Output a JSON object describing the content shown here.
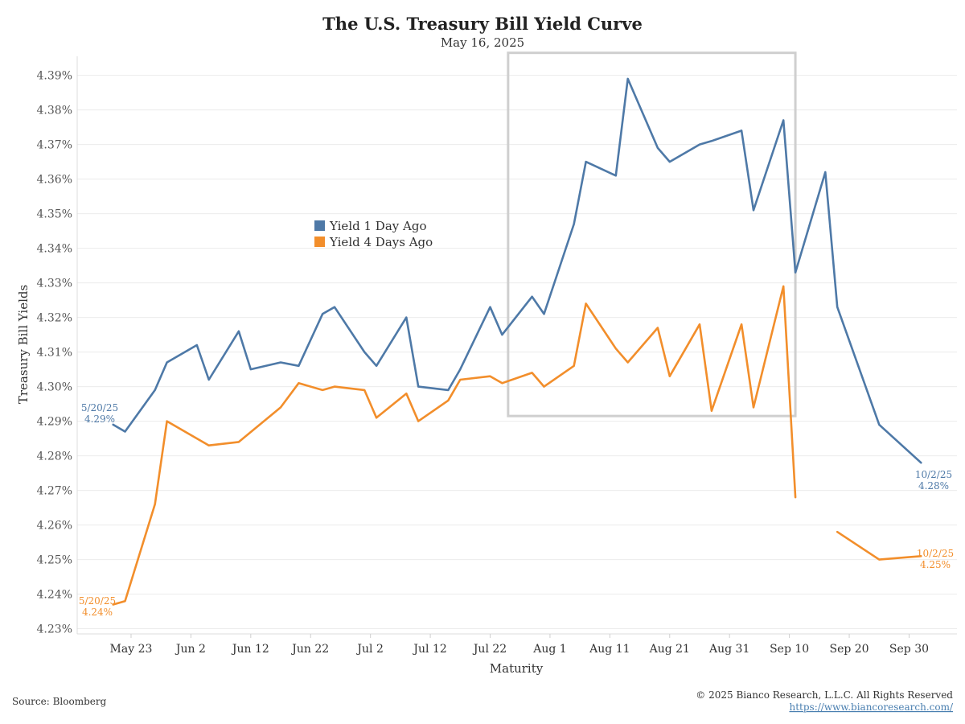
{
  "chart_data": {
    "type": "line",
    "title": "The U.S. Treasury Bill Yield Curve",
    "subtitle": "May 16, 2025",
    "xlabel": "Maturity",
    "ylabel": "Treasury Bill Yields",
    "x_tick_labels": [
      "May 23",
      "Jun 2",
      "Jun 12",
      "Jun 22",
      "Jul 2",
      "Jul 12",
      "Jul 22",
      "Aug 1",
      "Aug 11",
      "Aug 21",
      "Aug 31",
      "Sep 10",
      "Sep 20",
      "Sep 30"
    ],
    "x_tick_dates": [
      "2025-05-23",
      "2025-06-02",
      "2025-06-12",
      "2025-06-22",
      "2025-07-02",
      "2025-07-12",
      "2025-07-22",
      "2025-08-01",
      "2025-08-11",
      "2025-08-21",
      "2025-08-31",
      "2025-09-10",
      "2025-09-20",
      "2025-09-30"
    ],
    "y_tick_labels": [
      "4.23%",
      "4.24%",
      "4.25%",
      "4.26%",
      "4.27%",
      "4.28%",
      "4.29%",
      "4.30%",
      "4.31%",
      "4.32%",
      "4.33%",
      "4.34%",
      "4.35%",
      "4.36%",
      "4.37%",
      "4.38%",
      "4.39%"
    ],
    "y_ticks": [
      4.23,
      4.24,
      4.25,
      4.26,
      4.27,
      4.28,
      4.29,
      4.3,
      4.31,
      4.32,
      4.33,
      4.34,
      4.35,
      4.36,
      4.37,
      4.38,
      4.39
    ],
    "xlim": [
      "2025-05-14",
      "2025-10-08"
    ],
    "ylim": [
      4.2285,
      4.3955
    ],
    "legend_position": "upper-center",
    "grid": true,
    "highlight_box": {
      "x_range": [
        "2025-07-25",
        "2025-09-11"
      ],
      "y_range": [
        4.2915,
        4.3965
      ]
    },
    "series": [
      {
        "name": "Yield 1 Day Ago",
        "color": "#4e79a7",
        "start_label": {
          "date": "5/20/25",
          "value": "4.29%"
        },
        "end_label": {
          "date": "10/2/25",
          "value": "4.28%"
        },
        "segments": [
          [
            [
              "2025-05-20",
              4.289
            ],
            [
              "2025-05-22",
              4.287
            ],
            [
              "2025-05-27",
              4.299
            ],
            [
              "2025-05-29",
              4.307
            ],
            [
              "2025-06-03",
              4.312
            ],
            [
              "2025-06-05",
              4.302
            ],
            [
              "2025-06-10",
              4.316
            ],
            [
              "2025-06-12",
              4.305
            ],
            [
              "2025-06-17",
              4.307
            ],
            [
              "2025-06-20",
              4.306
            ],
            [
              "2025-06-24",
              4.321
            ],
            [
              "2025-06-26",
              4.323
            ],
            [
              "2025-07-01",
              4.31
            ],
            [
              "2025-07-03",
              4.306
            ],
            [
              "2025-07-08",
              4.32
            ],
            [
              "2025-07-10",
              4.3
            ],
            [
              "2025-07-15",
              4.299
            ],
            [
              "2025-07-17",
              4.305
            ],
            [
              "2025-07-22",
              4.323
            ],
            [
              "2025-07-24",
              4.315
            ],
            [
              "2025-07-29",
              4.326
            ],
            [
              "2025-07-31",
              4.321
            ],
            [
              "2025-08-05",
              4.347
            ],
            [
              "2025-08-07",
              4.365
            ],
            [
              "2025-08-12",
              4.361
            ],
            [
              "2025-08-14",
              4.389
            ],
            [
              "2025-08-19",
              4.369
            ],
            [
              "2025-08-21",
              4.365
            ],
            [
              "2025-08-26",
              4.37
            ],
            [
              "2025-08-28",
              4.371
            ],
            [
              "2025-09-02",
              4.374
            ],
            [
              "2025-09-04",
              4.351
            ],
            [
              "2025-09-09",
              4.377
            ],
            [
              "2025-09-11",
              4.333
            ],
            [
              "2025-09-16",
              4.362
            ],
            [
              "2025-09-18",
              4.323
            ],
            [
              "2025-09-25",
              4.289
            ],
            [
              "2025-10-02",
              4.278
            ]
          ]
        ]
      },
      {
        "name": "Yield 4 Days Ago",
        "color": "#f28e2b",
        "start_label": {
          "date": "5/20/25",
          "value": "4.24%"
        },
        "end_label": {
          "date": "10/2/25",
          "value": "4.25%"
        },
        "segments": [
          [
            [
              "2025-05-20",
              4.237
            ],
            [
              "2025-05-22",
              4.238
            ],
            [
              "2025-05-27",
              4.266
            ],
            [
              "2025-05-29",
              4.29
            ],
            [
              "2025-06-05",
              4.283
            ],
            [
              "2025-06-10",
              4.284
            ],
            [
              "2025-06-17",
              4.294
            ],
            [
              "2025-06-20",
              4.301
            ],
            [
              "2025-06-24",
              4.299
            ],
            [
              "2025-06-26",
              4.3
            ],
            [
              "2025-07-01",
              4.299
            ],
            [
              "2025-07-03",
              4.291
            ],
            [
              "2025-07-08",
              4.298
            ],
            [
              "2025-07-10",
              4.29
            ],
            [
              "2025-07-15",
              4.296
            ],
            [
              "2025-07-17",
              4.302
            ],
            [
              "2025-07-22",
              4.303
            ],
            [
              "2025-07-24",
              4.301
            ],
            [
              "2025-07-29",
              4.304
            ],
            [
              "2025-07-31",
              4.3
            ],
            [
              "2025-08-05",
              4.306
            ],
            [
              "2025-08-07",
              4.324
            ],
            [
              "2025-08-12",
              4.311
            ],
            [
              "2025-08-14",
              4.307
            ],
            [
              "2025-08-19",
              4.317
            ],
            [
              "2025-08-21",
              4.303
            ],
            [
              "2025-08-26",
              4.318
            ],
            [
              "2025-08-28",
              4.293
            ],
            [
              "2025-09-02",
              4.318
            ],
            [
              "2025-09-04",
              4.294
            ],
            [
              "2025-09-09",
              4.329
            ],
            [
              "2025-09-11",
              4.268
            ]
          ],
          [
            [
              "2025-09-18",
              4.258
            ],
            [
              "2025-09-25",
              4.25
            ],
            [
              "2025-10-02",
              4.251
            ]
          ]
        ]
      }
    ]
  },
  "footer": {
    "source": "Source: Bloomberg",
    "copyright": "© 2025 Bianco Research, L.L.C. All Rights Reserved",
    "url": "https://www.biancoresearch.com/"
  }
}
